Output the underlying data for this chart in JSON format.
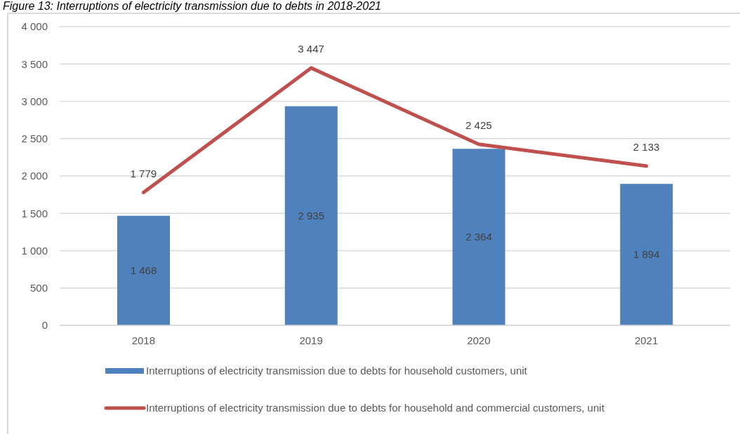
{
  "chart_data": {
    "type": "bar",
    "title": "Figure 13: Interruptions of electricity transmission due to debts in 2018-2021",
    "categories": [
      "2018",
      "2019",
      "2020",
      "2021"
    ],
    "series": [
      {
        "name": "Interruptions of electricity transmission due to debts for household customers, unit",
        "color": "#4f81bd",
        "values": [
          1468,
          2935,
          2364,
          1894
        ],
        "value_labels": [
          "1 468",
          "2 935",
          "2 364",
          "1 894"
        ]
      },
      {
        "name": "Interruptions of electricity transmission due to debts for household and commercial customers, unit",
        "type": "line",
        "color": "#c0504d",
        "values": [
          1779,
          3447,
          2425,
          2133
        ],
        "value_labels": [
          "1 779",
          "3 447",
          "2 425",
          "2 133"
        ]
      }
    ],
    "ylim": [
      0,
      4000
    ],
    "yticks": [
      0,
      500,
      {
        "value": 1000,
        "label": "1 000"
      },
      {
        "value": 1500,
        "label": "1 500"
      },
      {
        "value": 2000,
        "label": "2 000"
      },
      {
        "value": 2500,
        "label": "2 500"
      },
      {
        "value": 3000,
        "label": "3 000"
      },
      {
        "value": 3500,
        "label": "3 500"
      },
      {
        "value": 4000,
        "label": "4 000"
      }
    ],
    "grid": "y",
    "legend": "bottom",
    "marker": "none",
    "line_style": "solid"
  }
}
